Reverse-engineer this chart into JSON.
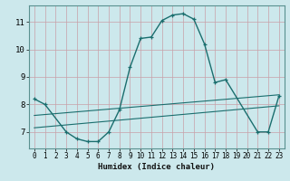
{
  "xlabel": "Humidex (Indice chaleur)",
  "bg_color": "#cce8ec",
  "grid_color": "#aacdd4",
  "line_color": "#1a6e6e",
  "xlim": [
    -0.5,
    23.5
  ],
  "ylim": [
    6.4,
    11.6
  ],
  "yticks": [
    7,
    8,
    9,
    10,
    11
  ],
  "xticks": [
    0,
    1,
    2,
    3,
    4,
    5,
    6,
    7,
    8,
    9,
    10,
    11,
    12,
    13,
    14,
    15,
    16,
    17,
    18,
    19,
    20,
    21,
    22,
    23
  ],
  "series1_x": [
    0,
    1,
    3,
    4,
    5,
    6,
    7,
    8,
    9,
    10,
    11,
    12,
    13,
    14,
    15,
    16,
    17,
    18,
    21,
    22,
    23
  ],
  "series1_y": [
    8.2,
    8.0,
    7.0,
    6.75,
    6.65,
    6.65,
    7.0,
    7.8,
    9.35,
    10.4,
    10.45,
    11.05,
    11.25,
    11.3,
    11.1,
    10.2,
    8.8,
    8.9,
    7.0,
    7.0,
    8.3
  ],
  "series2_x": [
    0,
    23
  ],
  "series2_y": [
    7.6,
    8.35
  ],
  "series3_x": [
    0,
    23
  ],
  "series3_y": [
    7.15,
    7.95
  ]
}
